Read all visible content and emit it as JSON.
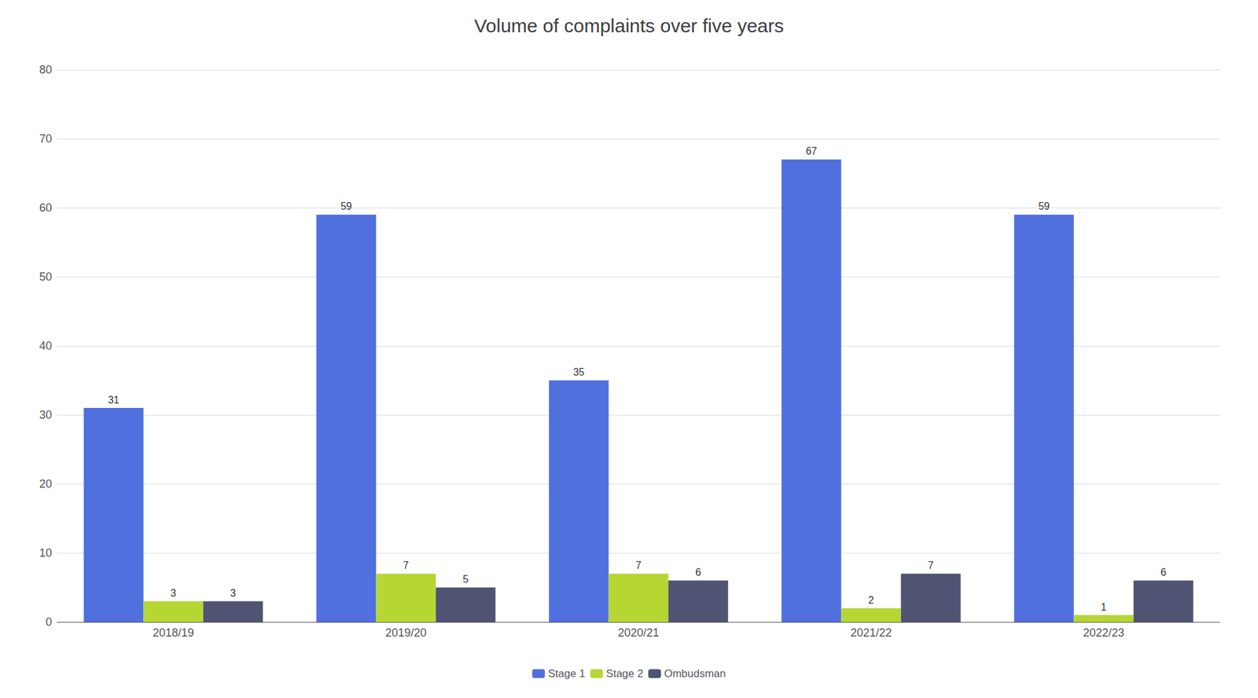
{
  "chart_data": {
    "type": "bar",
    "title": "Volume of complaints over five years",
    "categories": [
      "2018/19",
      "2019/20",
      "2020/21",
      "2021/22",
      "2022/23"
    ],
    "series": [
      {
        "name": "Stage 1",
        "values": [
          31,
          59,
          35,
          67,
          59
        ]
      },
      {
        "name": "Stage 2",
        "values": [
          3,
          7,
          7,
          2,
          1
        ]
      },
      {
        "name": "Ombudsman",
        "values": [
          3,
          5,
          6,
          7,
          6
        ]
      }
    ],
    "ylim": [
      0,
      80
    ],
    "yticks": [
      0,
      10,
      20,
      30,
      40,
      50,
      60,
      70,
      80
    ],
    "grid": true,
    "legend": "bottom",
    "data_labels": true
  }
}
